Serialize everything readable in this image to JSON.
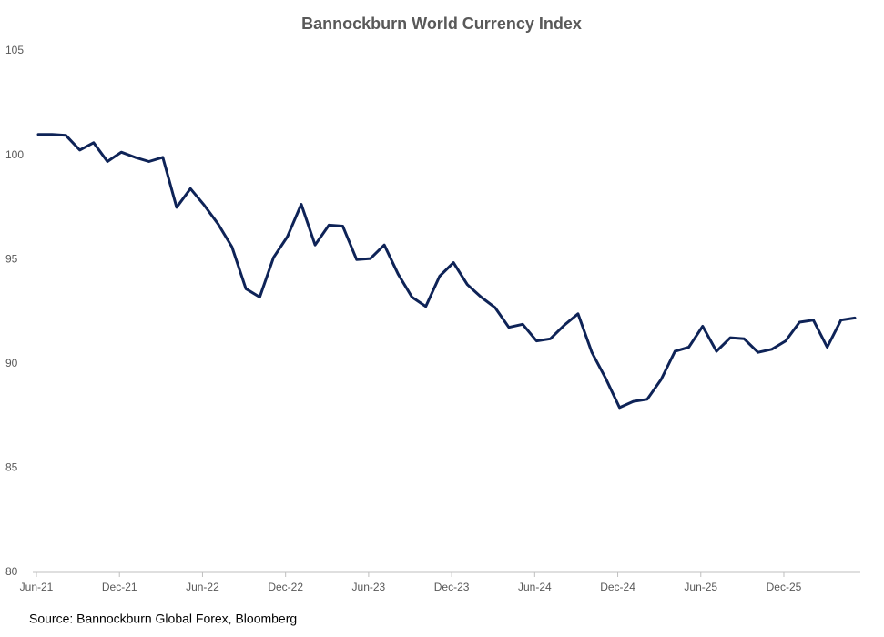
{
  "chart_data": {
    "type": "line",
    "title": "Bannockburn World Currency Index",
    "source": "Source: Bannockburn Global Forex, Bloomberg",
    "categories": [
      "Jun-21",
      null,
      null,
      null,
      null,
      null,
      "Dec-21",
      null,
      null,
      null,
      null,
      null,
      "Jun-22",
      null,
      null,
      null,
      null,
      null,
      "Dec-22",
      null,
      null,
      null,
      null,
      null,
      "Jun-23",
      null,
      null,
      null,
      null,
      null,
      "Dec-23",
      null,
      null,
      null,
      null,
      null,
      "Jun-24",
      null,
      null,
      null,
      null,
      null,
      "Dec-24",
      null,
      null,
      null,
      null,
      null,
      "Jun-25",
      null,
      null,
      null,
      null,
      null,
      "Dec-25",
      null,
      null,
      null,
      null,
      null
    ],
    "series": [
      {
        "name": "Bannockburn World Currency Index",
        "color": "#0e2357",
        "values": [
          101.0,
          101.0,
          100.95,
          100.25,
          100.6,
          99.7,
          100.15,
          99.9,
          99.7,
          99.9,
          97.5,
          98.4,
          97.6,
          96.7,
          95.6,
          93.6,
          93.2,
          95.1,
          96.1,
          97.65,
          95.7,
          96.65,
          96.6,
          95.0,
          95.05,
          95.7,
          94.3,
          93.2,
          92.75,
          94.2,
          94.85,
          93.8,
          93.2,
          92.7,
          91.75,
          91.9,
          91.1,
          91.2,
          91.85,
          92.4,
          90.55,
          89.3,
          87.9,
          88.2,
          88.3,
          89.25,
          90.6,
          90.8,
          91.8,
          90.6,
          91.25,
          91.2,
          90.55,
          90.7,
          91.1,
          92.0,
          92.1,
          90.8,
          92.1,
          92.2
        ]
      }
    ],
    "ylim": [
      80,
      105
    ],
    "yticks": [
      80,
      85,
      90,
      95,
      100,
      105
    ],
    "grid": false
  }
}
